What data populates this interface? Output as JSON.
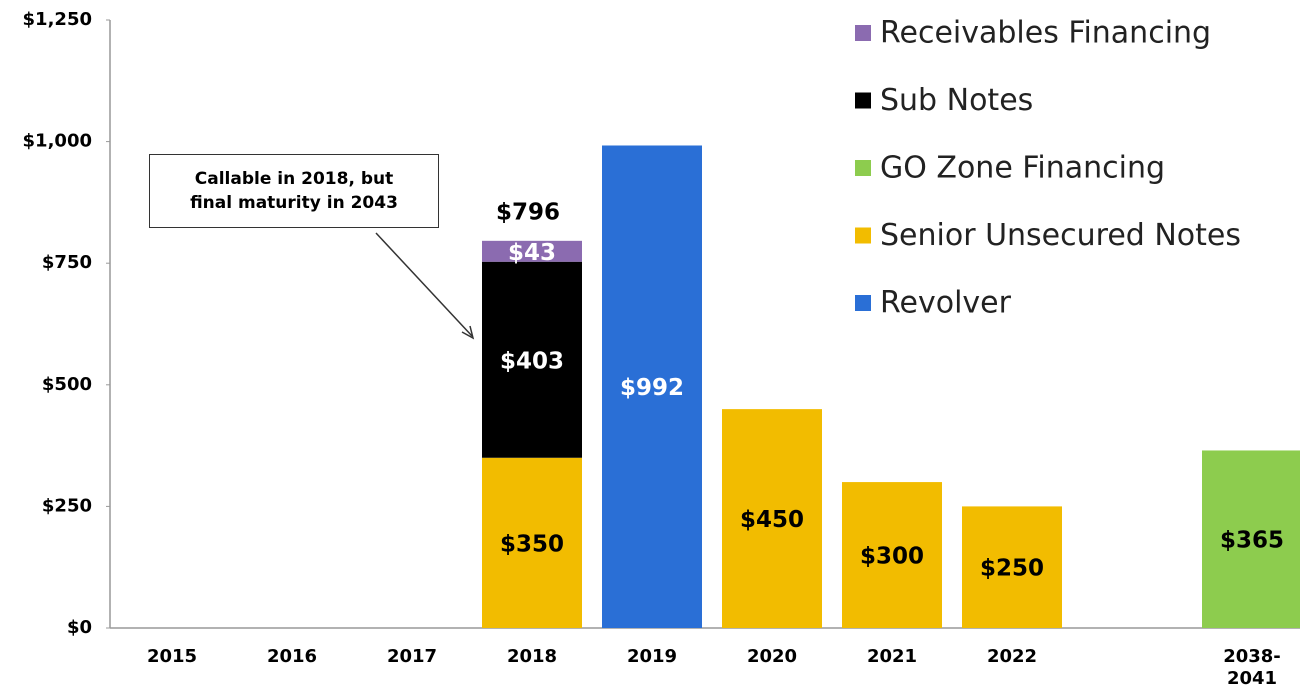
{
  "chart_data": {
    "type": "stacked_bar",
    "categories": [
      "2015",
      "2016",
      "2017",
      "2018",
      "2019",
      "2020",
      "2021",
      "2022",
      null,
      "2038-\n2041"
    ],
    "series": [
      {
        "name": "Revolver",
        "color": "#2a6fd6",
        "label_color": "#ffffff",
        "values": [
          null,
          null,
          null,
          null,
          992,
          null,
          null,
          null,
          null,
          null
        ],
        "value_labels": [
          null,
          null,
          null,
          null,
          "$992",
          null,
          null,
          null,
          null,
          null
        ]
      },
      {
        "name": "Senior Unsecured Notes",
        "color": "#f2bc00",
        "label_color": "#000000",
        "values": [
          null,
          null,
          null,
          350,
          null,
          450,
          300,
          250,
          null,
          null
        ],
        "value_labels": [
          null,
          null,
          null,
          "$350",
          null,
          "$450",
          "$300",
          "$250",
          null,
          null
        ]
      },
      {
        "name": "GO Zone Financing",
        "color": "#8dcc4e",
        "label_color": "#000000",
        "values": [
          null,
          null,
          null,
          null,
          null,
          null,
          null,
          null,
          null,
          365
        ],
        "value_labels": [
          null,
          null,
          null,
          null,
          null,
          null,
          null,
          null,
          null,
          "$365"
        ]
      },
      {
        "name": "Sub Notes",
        "color": "#000000",
        "label_color": "#ffffff",
        "values": [
          null,
          null,
          null,
          403,
          null,
          null,
          null,
          null,
          null,
          null
        ],
        "value_labels": [
          null,
          null,
          null,
          "$403",
          null,
          null,
          null,
          null,
          null,
          null
        ]
      },
      {
        "name": "Receivables Financing",
        "color": "#8b6bb0",
        "label_color": "#ffffff",
        "values": [
          null,
          null,
          null,
          43,
          null,
          null,
          null,
          null,
          null,
          null
        ],
        "value_labels": [
          null,
          null,
          null,
          "$43",
          null,
          null,
          null,
          null,
          null,
          null
        ]
      }
    ],
    "totals": [
      null,
      null,
      null,
      796,
      null,
      null,
      null,
      null,
      null,
      null
    ],
    "total_labels": [
      null,
      null,
      null,
      "$796",
      null,
      null,
      null,
      null,
      null,
      null
    ],
    "annotation": "Callable in 2018, but\nfinal maturity in 2043",
    "ylim": [
      0,
      1250
    ],
    "yticks": [
      {
        "value": 0,
        "label": "$0"
      },
      {
        "value": 250,
        "label": "$250"
      },
      {
        "value": 500,
        "label": "$500"
      },
      {
        "value": 750,
        "label": "$750"
      },
      {
        "value": 1000,
        "label": "$1,000"
      },
      {
        "value": 1250,
        "label": "$1,250"
      }
    ],
    "legend": "top-right"
  }
}
